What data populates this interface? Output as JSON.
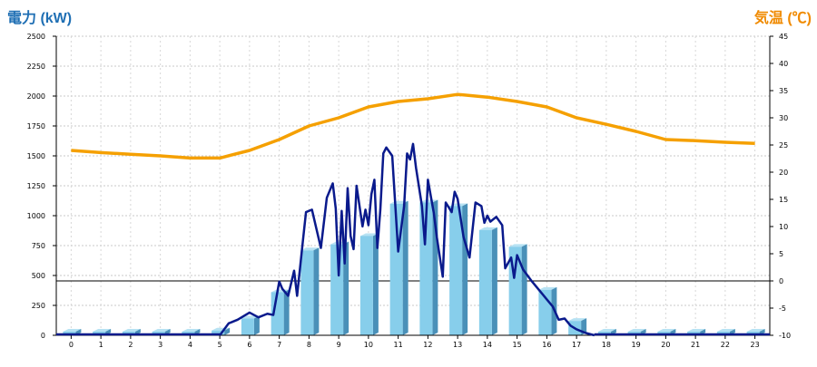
{
  "chart_data": {
    "type": "bar+line",
    "ylabel_left": "電力 (kW)",
    "ylabel_right": "気温 (℃)",
    "x_ticks": [
      "0",
      "1",
      "2",
      "3",
      "4",
      "5",
      "6",
      "7",
      "8",
      "9",
      "10",
      "11",
      "12",
      "13",
      "14",
      "15",
      "16",
      "17",
      "18",
      "19",
      "20",
      "21",
      "22",
      "23"
    ],
    "y_left": {
      "range": [
        0,
        2500
      ],
      "ticks": [
        "0",
        "250",
        "500",
        "750",
        "1000",
        "1250",
        "1500",
        "1750",
        "2000",
        "2250",
        "2500"
      ]
    },
    "y_right": {
      "range": [
        -10,
        45
      ],
      "ticks": [
        "-10",
        "-5",
        "0",
        "5",
        "10",
        "15",
        "20",
        "25",
        "30",
        "35",
        "40",
        "45"
      ]
    },
    "grid": true,
    "bars": {
      "name": "電力",
      "color": "#87ceeb",
      "x": [
        0,
        1,
        2,
        3,
        4,
        5,
        6,
        7,
        8,
        9,
        10,
        11,
        12,
        13,
        14,
        15,
        16,
        17,
        18,
        19,
        20,
        21,
        22,
        23
      ],
      "values": [
        30,
        30,
        30,
        30,
        30,
        40,
        140,
        360,
        710,
        760,
        830,
        1100,
        1110,
        1080,
        880,
        740,
        380,
        120,
        30,
        30,
        30,
        30,
        30,
        30
      ]
    },
    "power_line": {
      "name": "電力",
      "color": "#0a1a8c",
      "x": [
        5.0,
        5.3,
        5.6,
        6.0,
        6.3,
        6.6,
        6.8,
        7.0,
        7.1,
        7.3,
        7.5,
        7.6,
        7.8,
        7.9,
        8.1,
        8.4,
        8.6,
        8.8,
        8.9,
        9.0,
        9.1,
        9.2,
        9.3,
        9.4,
        9.5,
        9.6,
        9.8,
        9.9,
        10.0,
        10.1,
        10.2,
        10.3,
        10.4,
        10.5,
        10.6,
        10.8,
        11.0,
        11.2,
        11.3,
        11.4,
        11.5,
        11.6,
        11.8,
        11.9,
        12.0,
        12.2,
        12.3,
        12.5,
        12.6,
        12.8,
        12.9,
        13.0,
        13.2,
        13.4,
        13.6,
        13.8,
        13.9,
        14.0,
        14.1,
        14.3,
        14.5,
        14.6,
        14.8,
        14.9,
        15.0,
        15.2,
        15.5,
        15.8,
        16.0,
        16.2,
        16.4,
        16.6,
        16.8,
        17.0,
        17.3,
        17.6
      ],
      "values": [
        0,
        100,
        130,
        190,
        150,
        180,
        170,
        450,
        390,
        330,
        540,
        330,
        800,
        1030,
        1050,
        730,
        1150,
        1270,
        1060,
        500,
        1040,
        600,
        1230,
        830,
        720,
        1250,
        910,
        1050,
        920,
        1180,
        1300,
        730,
        1050,
        1520,
        1570,
        1500,
        700,
        1080,
        1520,
        1470,
        1600,
        1400,
        1080,
        760,
        1300,
        1020,
        820,
        490,
        1110,
        1030,
        1200,
        1140,
        820,
        650,
        1110,
        1080,
        940,
        1000,
        950,
        990,
        920,
        560,
        650,
        480,
        670,
        550,
        450,
        360,
        300,
        240,
        130,
        140,
        80,
        50,
        20,
        0
      ]
    },
    "temperature": {
      "name": "気温",
      "color": "#f5a000",
      "x": [
        0,
        1,
        2,
        3,
        4,
        5,
        6,
        7,
        8,
        9,
        10,
        11,
        12,
        13,
        14,
        15,
        16,
        17,
        18,
        19,
        20,
        21,
        22,
        23
      ],
      "values": [
        24.0,
        23.6,
        23.3,
        23.0,
        22.6,
        22.6,
        24.0,
        26.0,
        28.5,
        30.0,
        32.0,
        33.0,
        33.5,
        34.3,
        33.8,
        33.0,
        32.0,
        30.0,
        28.8,
        27.5,
        26.0,
        25.8,
        25.5,
        25.3
      ]
    }
  }
}
